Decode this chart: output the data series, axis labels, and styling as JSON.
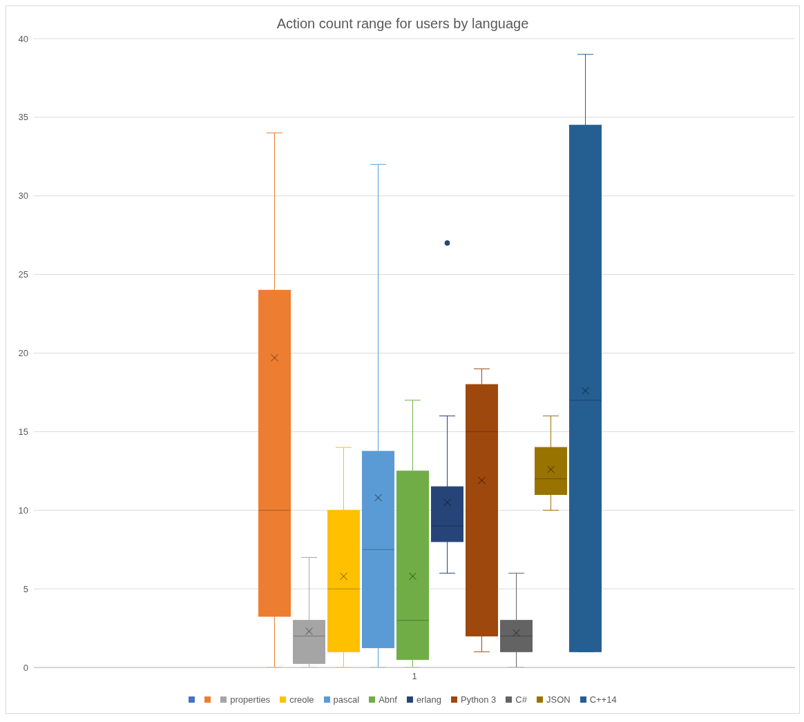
{
  "chart_data": {
    "type": "box",
    "title": "Action count range for users by language",
    "categories": [
      "1"
    ],
    "ylim": [
      0,
      40
    ],
    "yticks": [
      0,
      5,
      10,
      15,
      20,
      25,
      30,
      35,
      40
    ],
    "grid": "y",
    "legend": "bottom",
    "series": [
      {
        "color": "#4472c4",
        "boxes": [
          null
        ]
      },
      {
        "color": "#ed7d31",
        "boxes": [
          {
            "low": 0,
            "q1": 3.25,
            "median": 10,
            "q3": 24,
            "high": 34,
            "mean": 19.7
          }
        ]
      },
      {
        "name": "properties",
        "color": "#a5a5a5",
        "boxes": [
          {
            "low": 0,
            "q1": 0.25,
            "median": 2,
            "q3": 3,
            "high": 7,
            "mean": 2.3
          }
        ]
      },
      {
        "name": "creole",
        "color": "#ffc000",
        "boxes": [
          {
            "low": 0,
            "q1": 1,
            "median": 5,
            "q3": 10,
            "high": 14,
            "mean": 5.8
          }
        ]
      },
      {
        "name": "pascal",
        "color": "#5b9bd5",
        "boxes": [
          {
            "low": 0,
            "q1": 1.25,
            "median": 7.5,
            "q3": 13.75,
            "high": 32,
            "mean": 10.8
          }
        ]
      },
      {
        "name": "Abnf",
        "color": "#70ad47",
        "boxes": [
          {
            "low": 0,
            "q1": 0.5,
            "median": 3,
            "q3": 12.5,
            "high": 17,
            "mean": 5.8
          }
        ]
      },
      {
        "name": "erlang",
        "color": "#264478",
        "boxes": [
          {
            "low": 6,
            "q1": 8,
            "median": 9,
            "q3": 11.5,
            "high": 16,
            "mean": 10.5,
            "outliers": [
              27
            ]
          }
        ]
      },
      {
        "name": "Python 3",
        "color": "#9e480e",
        "boxes": [
          {
            "low": 1,
            "q1": 2,
            "median": 15,
            "q3": 18,
            "high": 19,
            "mean": 11.9
          }
        ]
      },
      {
        "name": "C#",
        "color": "#636363",
        "boxes": [
          {
            "low": 0,
            "q1": 1,
            "median": 2,
            "q3": 3,
            "high": 6,
            "mean": 2.2
          }
        ]
      },
      {
        "name": "JSON",
        "color": "#997300",
        "boxes": [
          {
            "low": 10,
            "q1": 11,
            "median": 12,
            "q3": 14,
            "high": 16,
            "mean": 12.6
          }
        ]
      },
      {
        "name": "C++14",
        "color": "#255e91",
        "boxes": [
          {
            "low": 1,
            "q1": 1,
            "median": 17,
            "q3": 34.5,
            "high": 39,
            "mean": 17.6
          }
        ]
      }
    ]
  }
}
